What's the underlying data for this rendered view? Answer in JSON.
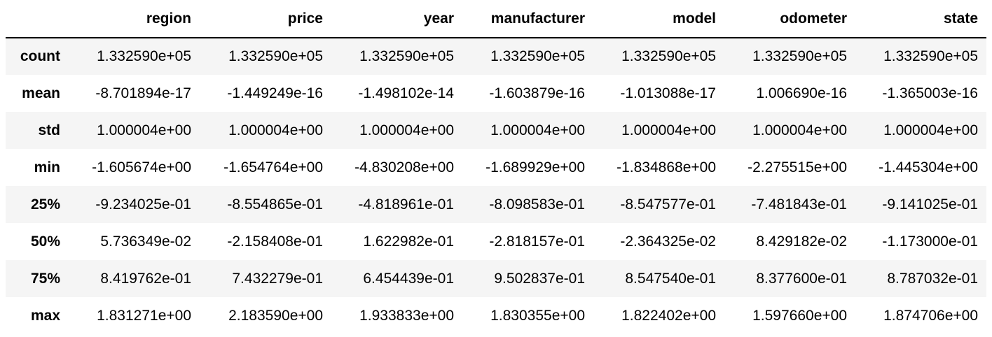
{
  "table": {
    "columns": [
      "",
      "region",
      "price",
      "year",
      "manufacturer",
      "model",
      "odometer",
      "state"
    ],
    "rows": [
      {
        "label": "count",
        "cells": [
          "1.332590e+05",
          "1.332590e+05",
          "1.332590e+05",
          "1.332590e+05",
          "1.332590e+05",
          "1.332590e+05",
          "1.332590e+05"
        ]
      },
      {
        "label": "mean",
        "cells": [
          "-8.701894e-17",
          "-1.449249e-16",
          "-1.498102e-14",
          "-1.603879e-16",
          "-1.013088e-17",
          "1.006690e-16",
          "-1.365003e-16"
        ]
      },
      {
        "label": "std",
        "cells": [
          "1.000004e+00",
          "1.000004e+00",
          "1.000004e+00",
          "1.000004e+00",
          "1.000004e+00",
          "1.000004e+00",
          "1.000004e+00"
        ]
      },
      {
        "label": "min",
        "cells": [
          "-1.605674e+00",
          "-1.654764e+00",
          "-4.830208e+00",
          "-1.689929e+00",
          "-1.834868e+00",
          "-2.275515e+00",
          "-1.445304e+00"
        ]
      },
      {
        "label": "25%",
        "cells": [
          "-9.234025e-01",
          "-8.554865e-01",
          "-4.818961e-01",
          "-8.098583e-01",
          "-8.547577e-01",
          "-7.481843e-01",
          "-9.141025e-01"
        ]
      },
      {
        "label": "50%",
        "cells": [
          "5.736349e-02",
          "-2.158408e-01",
          "1.622982e-01",
          "-2.818157e-01",
          "-2.364325e-02",
          "8.429182e-02",
          "-1.173000e-01"
        ]
      },
      {
        "label": "75%",
        "cells": [
          "8.419762e-01",
          "7.432279e-01",
          "6.454439e-01",
          "9.502837e-01",
          "8.547540e-01",
          "8.377600e-01",
          "8.787032e-01"
        ]
      },
      {
        "label": "max",
        "cells": [
          "1.831271e+00",
          "2.183590e+00",
          "1.933833e+00",
          "1.830355e+00",
          "1.822402e+00",
          "1.597660e+00",
          "1.874706e+00"
        ]
      }
    ]
  }
}
